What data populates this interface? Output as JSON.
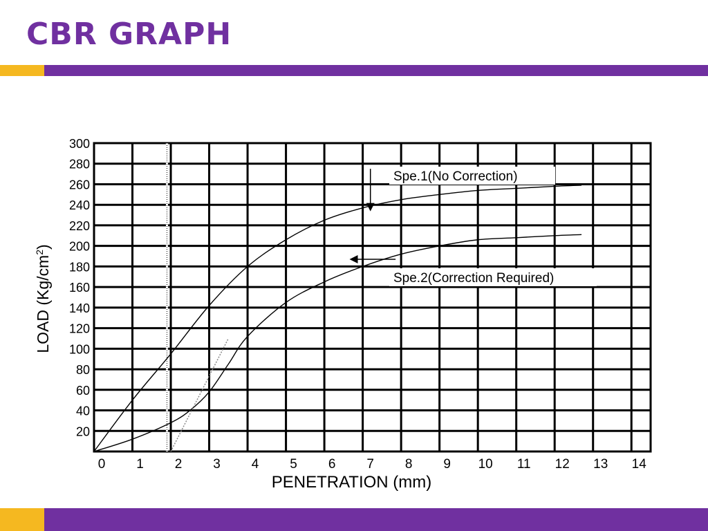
{
  "slide": {
    "title": "CBR GRAPH",
    "colors": {
      "accent": "#7030a0",
      "gold": "#f5b820"
    }
  },
  "chart_data": {
    "type": "line",
    "title": "",
    "xlabel": "PENETRATION (mm)",
    "ylabel_main": "LOAD (Kg/cm",
    "ylabel_sup": "2",
    "ylabel_tail": ")",
    "xlim": [
      0,
      14.5
    ],
    "ylim": [
      0,
      300
    ],
    "x_ticks": [
      "0",
      "1",
      "2",
      "3",
      "4",
      "5",
      "6",
      "7",
      "8",
      "9",
      "10",
      "11",
      "12",
      "13",
      "14"
    ],
    "y_ticks": [
      "300",
      "280",
      "260",
      "240",
      "220",
      "200",
      "180",
      "160",
      "140",
      "120",
      "100",
      "80",
      "60",
      "40",
      "20"
    ],
    "grid": true,
    "series": [
      {
        "name": "Spe.1(No Correction)",
        "x": [
          0,
          1,
          2,
          3,
          4,
          5,
          6,
          7,
          8,
          9,
          10,
          11,
          12,
          12.7
        ],
        "y": [
          0,
          50,
          95,
          142,
          180,
          206,
          225,
          237,
          245,
          250,
          254,
          256,
          258,
          259
        ]
      },
      {
        "name": "Spe.2(Correction Required)",
        "x": [
          0,
          1,
          2,
          2.5,
          3,
          3.5,
          4,
          5,
          6,
          7,
          8,
          9,
          10,
          11,
          12,
          12.7
        ],
        "y": [
          0,
          12,
          28,
          40,
          58,
          85,
          112,
          145,
          165,
          180,
          192,
          200,
          206,
          208,
          210,
          211
        ]
      },
      {
        "name": "",
        "style": "dotted-tangent",
        "x": [
          2.0,
          2.5,
          3.0,
          3.5
        ],
        "y": [
          0,
          35,
          75,
          110
        ]
      }
    ],
    "reference_line": {
      "x": 1.9,
      "style": "dotted"
    },
    "annotations": [
      {
        "text": "Spe.1(No Correction)",
        "target_series": 0,
        "arrow": "down",
        "arrow_x": 7.2,
        "arrow_y_from": 275,
        "arrow_y_to": 235
      },
      {
        "text": "Spe.2(Correction Required)",
        "target_series": 1,
        "arrow": "left",
        "arrow_y": 187,
        "arrow_x_from": 8.0,
        "arrow_x_to": 6.8
      }
    ]
  }
}
